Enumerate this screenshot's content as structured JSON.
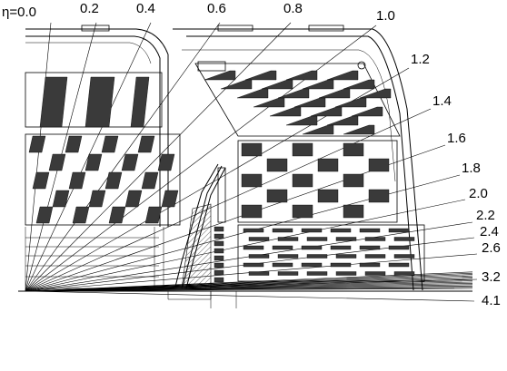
{
  "eta_labels": [
    "η=0.0",
    "0.2",
    "0.4",
    "0.6",
    "0.8",
    "1.0",
    "1.2",
    "1.4",
    "1.6",
    "1.8",
    "2.0",
    "2.2",
    "2.4",
    "2.6",
    "3.2",
    "4.1"
  ],
  "colors": {
    "ink": "#000000",
    "block": "#3a3a3a",
    "background": "#ffffff"
  }
}
